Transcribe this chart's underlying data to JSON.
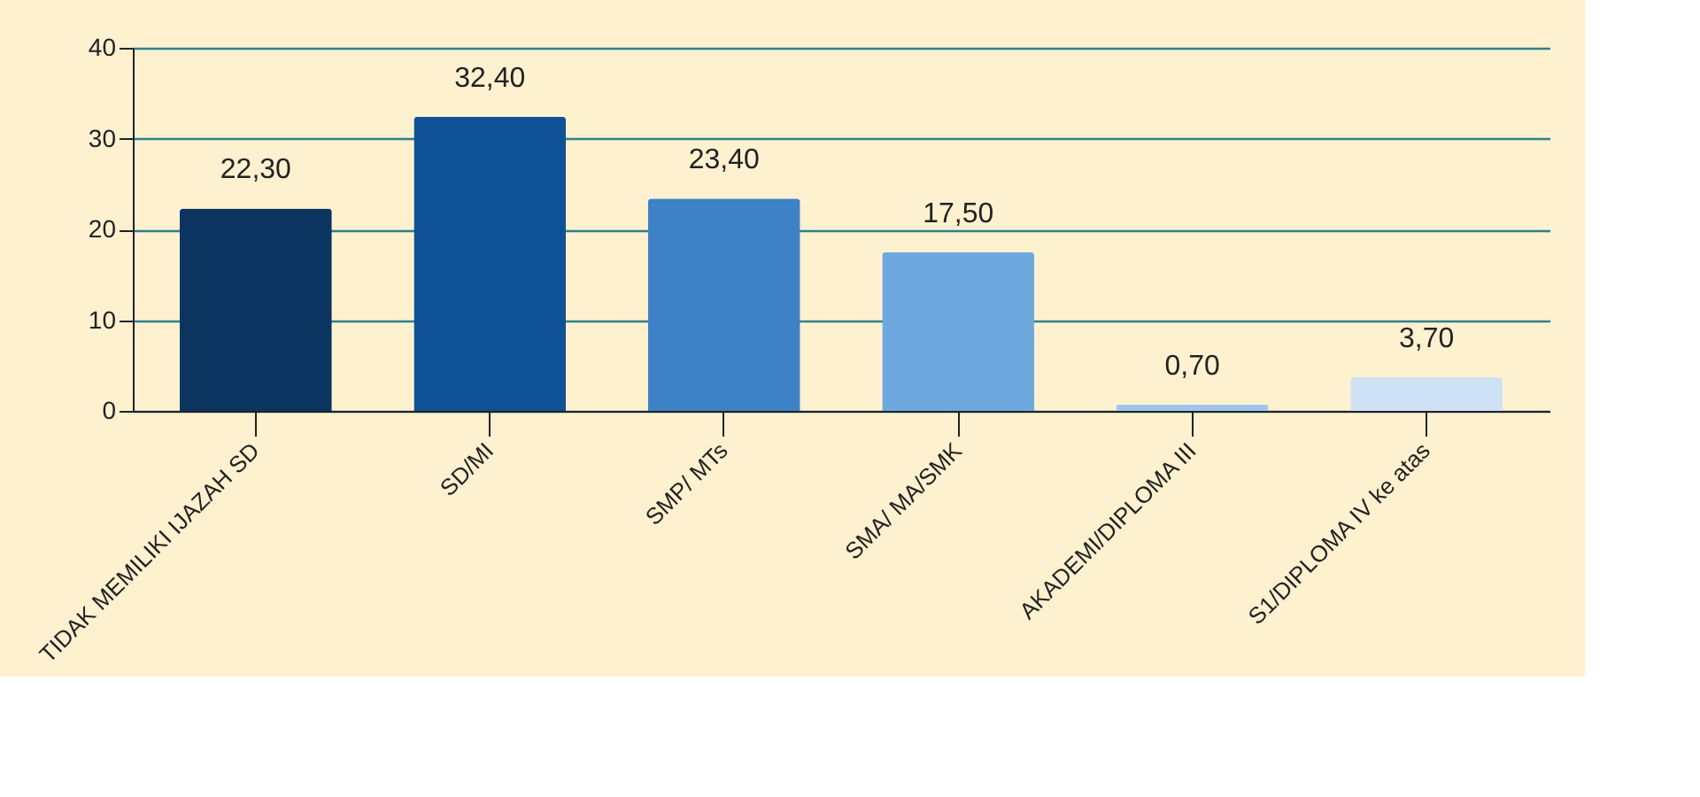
{
  "chart_data": {
    "type": "bar",
    "categories": [
      "TIDAK MEMILIKI IJAZAH SD",
      "SD/MI",
      "SMP/ MTs",
      "SMA/ MA/SMK",
      "AKADEMI/DIPLOMA III",
      "S1/DIPLOMA IV ke atas"
    ],
    "values": [
      22.3,
      32.4,
      23.4,
      17.5,
      0.7,
      3.7
    ],
    "colors": [
      "#0b3560",
      "#0e5196",
      "#3d82c6",
      "#6fa8df",
      "#9ec4ea",
      "#cfe1f4"
    ],
    "value_labels": [
      "22,30",
      "32,40",
      "23,40",
      "17,50",
      "0,70",
      "3,70"
    ],
    "ylim": [
      0,
      40
    ],
    "yticks": [
      0,
      10,
      20,
      30,
      40
    ],
    "grid": "y"
  }
}
